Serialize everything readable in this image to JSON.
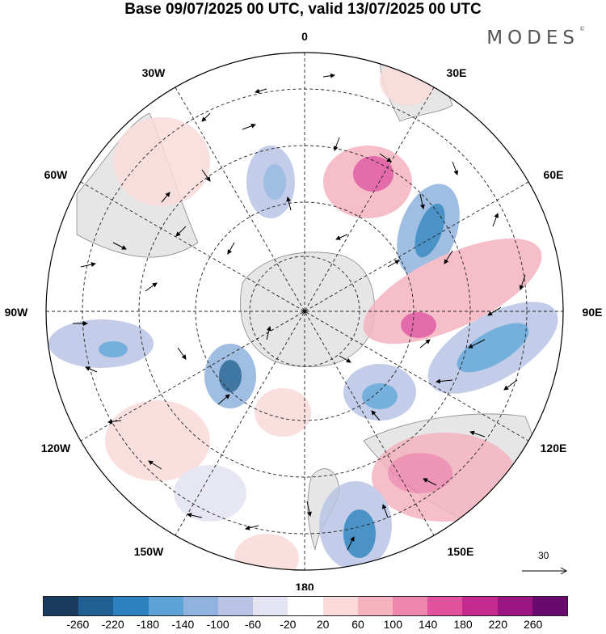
{
  "title": "Base 09/07/2025 00 UTC, valid 13/07/2025 00 UTC",
  "brand": "MODES",
  "brand_mark": "©",
  "longitude_labels": [
    "0",
    "30E",
    "60E",
    "90E",
    "120E",
    "150E",
    "180",
    "150W",
    "120W",
    "90W",
    "60W",
    "30W"
  ],
  "reference_vector_label": "30",
  "colorbar": {
    "colors": [
      "#1b3b5e",
      "#1f5f92",
      "#2c80bd",
      "#5da3d6",
      "#8fb3de",
      "#b9c4e4",
      "#e3e3f2",
      "#ffffff",
      "#fadada",
      "#f5b3bf",
      "#ee87ad",
      "#e0529d",
      "#c72a8f",
      "#9b1580",
      "#6a0a6e"
    ],
    "tick_labels": [
      "-260",
      "-220",
      "-180",
      "-140",
      "-100",
      "-60",
      "-20",
      "20",
      "60",
      "100",
      "140",
      "180",
      "220",
      "260"
    ]
  }
}
